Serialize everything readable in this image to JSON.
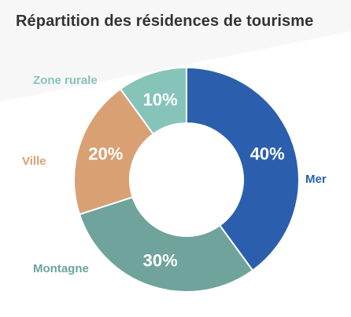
{
  "chart_data": {
    "type": "pie",
    "title": "Répartition des résidences de tourisme",
    "donut": true,
    "categories": [
      "Mer",
      "Montagne",
      "Ville",
      "Zone rurale"
    ],
    "values": [
      40,
      30,
      20,
      10
    ],
    "value_labels": [
      "40%",
      "30%",
      "20%",
      "10%"
    ],
    "colors": [
      "#2b5fad",
      "#6fa39b",
      "#d9a074",
      "#86c4ba"
    ],
    "label_colors": [
      "#2b5fad",
      "#6fa39b",
      "#d9a074",
      "#86c4ba"
    ],
    "start_angle_deg": 0,
    "direction": "clockwise",
    "legend": "labels beside slices"
  }
}
